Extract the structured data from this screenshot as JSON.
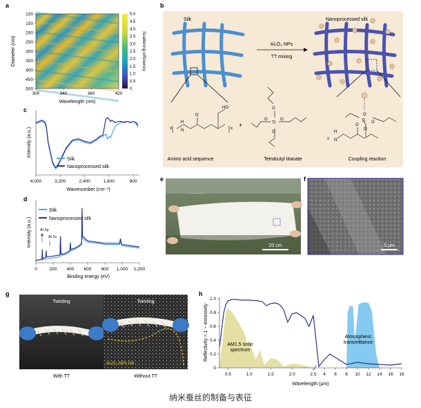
{
  "caption": "纳米蚕丝的制备与表征",
  "panel_letters": {
    "a": "a",
    "b": "b",
    "c": "c",
    "d": "d",
    "e": "e",
    "f": "f",
    "g": "g",
    "h": "h"
  },
  "colors": {
    "silk": "#4fa8e0",
    "nano": "#2b2f8f",
    "schematic_bg": "#f6e9d6",
    "solar": "#d8d27a",
    "atm": "#5cb8ea"
  },
  "chart_data": [
    {
      "type": "heatmap",
      "panel": "a",
      "xlabel": "Wavelength (nm)",
      "ylabel": "Diameter (nm)",
      "colorbar_label": "Scattering efficiency",
      "x_ticks": [
        "300",
        "340",
        "380",
        "420"
      ],
      "y_ticks": [
        "100",
        "150",
        "200",
        "250",
        "300",
        "350",
        "400",
        "450",
        "500"
      ],
      "colorbar_ticks": [
        "0",
        "0.5",
        "1.0",
        "1.5",
        "2.0",
        "2.5",
        "3.0",
        "3.5",
        "4.0",
        "4.5",
        "5.0"
      ],
      "xlim": [
        300,
        420
      ],
      "ylim": [
        100,
        500
      ],
      "zlim": [
        0,
        5
      ]
    },
    {
      "type": "line",
      "panel": "c",
      "xlabel": "Wavenumber (cm⁻¹)",
      "ylabel": "Intensity (a.u.)",
      "x_ticks": [
        "4,000",
        "3,200",
        "2,400",
        "1,600",
        "800"
      ],
      "xlim": [
        4000,
        600
      ],
      "series": [
        {
          "name": "Silk",
          "x": [
            4000,
            3800,
            3700,
            3650,
            3600,
            3450,
            3350,
            3300,
            3200,
            3100,
            3000,
            2900,
            2800,
            2600,
            2400,
            2200,
            2000,
            1900,
            1800,
            1700,
            1650,
            1600,
            1550,
            1500,
            1450,
            1400,
            1300,
            1200,
            1100,
            1000,
            900,
            800,
            700,
            650
          ],
          "y": [
            0.82,
            0.86,
            0.83,
            0.74,
            0.52,
            0.18,
            0.1,
            0.12,
            0.22,
            0.32,
            0.42,
            0.48,
            0.54,
            0.56,
            0.52,
            0.5,
            0.56,
            0.6,
            0.62,
            0.66,
            0.58,
            0.62,
            0.6,
            0.66,
            0.72,
            0.78,
            0.82,
            0.84,
            0.86,
            0.86,
            0.85,
            0.86,
            0.82,
            0.76
          ]
        },
        {
          "name": "Nanoprocessed silk",
          "x": [
            4000,
            3800,
            3700,
            3650,
            3600,
            3450,
            3350,
            3300,
            3200,
            3100,
            3000,
            2900,
            2800,
            2600,
            2400,
            2200,
            2000,
            1900,
            1800,
            1700,
            1650,
            1600,
            1550,
            1500,
            1450,
            1400,
            1300,
            1200,
            1100,
            1000,
            900,
            800,
            700,
            650
          ],
          "y": [
            0.84,
            0.88,
            0.85,
            0.76,
            0.54,
            0.2,
            0.12,
            0.14,
            0.24,
            0.34,
            0.44,
            0.5,
            0.56,
            0.58,
            0.54,
            0.52,
            0.58,
            0.62,
            0.64,
            0.9,
            0.92,
            0.9,
            0.86,
            0.88,
            0.86,
            0.84,
            0.86,
            0.86,
            0.84,
            0.86,
            0.84,
            0.86,
            0.84,
            0.8
          ]
        }
      ]
    },
    {
      "type": "line",
      "panel": "d",
      "xlabel": "Binding energy (eV)",
      "ylabel": "Intensity (a.u.)",
      "x_ticks": [
        "0",
        "200",
        "400",
        "600",
        "800",
        "1,000",
        "1,200"
      ],
      "xlim": [
        0,
        1200
      ],
      "annotations": [
        "Al 2p",
        "Al 2s"
      ],
      "series": [
        {
          "name": "Silk",
          "x": [
            0,
            50,
            80,
            100,
            150,
            200,
            250,
            280,
            285,
            290,
            300,
            350,
            395,
            400,
            405,
            450,
            500,
            530,
            535,
            540,
            600,
            700,
            800,
            900,
            970,
            980,
            990,
            1000,
            1100,
            1200
          ],
          "y": [
            0.04,
            0.05,
            0.05,
            0.06,
            0.07,
            0.08,
            0.09,
            0.1,
            0.42,
            0.14,
            0.12,
            0.14,
            0.18,
            0.34,
            0.2,
            0.22,
            0.26,
            0.3,
            0.8,
            0.4,
            0.34,
            0.32,
            0.3,
            0.3,
            0.3,
            0.36,
            0.3,
            0.28,
            0.26,
            0.24
          ]
        },
        {
          "name": "Nanoprocessed silk",
          "x": [
            0,
            50,
            70,
            74,
            78,
            100,
            115,
            119,
            123,
            150,
            200,
            250,
            280,
            285,
            290,
            300,
            350,
            395,
            400,
            405,
            450,
            500,
            530,
            535,
            540,
            600,
            700,
            800,
            900,
            970,
            980,
            990,
            1000,
            1100,
            1200
          ],
          "y": [
            0.04,
            0.05,
            0.06,
            0.22,
            0.07,
            0.08,
            0.09,
            0.2,
            0.1,
            0.1,
            0.11,
            0.12,
            0.13,
            0.44,
            0.16,
            0.14,
            0.16,
            0.2,
            0.32,
            0.22,
            0.24,
            0.28,
            0.32,
            0.9,
            0.44,
            0.36,
            0.34,
            0.32,
            0.32,
            0.32,
            0.4,
            0.32,
            0.3,
            0.28,
            0.26
          ]
        }
      ]
    },
    {
      "type": "line",
      "panel": "h",
      "xlabel": "Wavelength (μm)",
      "ylabel": "Reflectivity = 1 − emissivity",
      "x_ticks": [
        "0.5",
        "1.0",
        "1.5",
        "2.0",
        "2.5",
        "4",
        "6",
        "8",
        "10",
        "12",
        "14",
        "16",
        "18"
      ],
      "y_ticks": [
        "0",
        "0.2",
        "0.4",
        "0.6",
        "0.8",
        "1.0"
      ],
      "ylim": [
        0,
        1
      ],
      "x_axis": "broken (0.3–2.5 μm linear, 2.5–18 μm compressed)",
      "area_labels": [
        "AM1.5 solar\nspectrum",
        "Atmospheric\ntransmittance"
      ],
      "series": [
        {
          "name": "Nanoprocessed silk reflectivity",
          "x": [
            0.3,
            0.35,
            0.4,
            0.45,
            0.5,
            0.6,
            0.7,
            0.8,
            1.0,
            1.2,
            1.3,
            1.4,
            1.5,
            1.6,
            1.7,
            1.8,
            1.9,
            2.0,
            2.1,
            2.2,
            2.3,
            2.4,
            2.5,
            3,
            4,
            5,
            6,
            8,
            10,
            12,
            14,
            16,
            18
          ],
          "y": [
            0.3,
            0.55,
            0.8,
            0.92,
            0.97,
            0.99,
            0.99,
            0.98,
            0.98,
            0.97,
            0.96,
            0.9,
            0.93,
            0.94,
            0.92,
            0.85,
            0.66,
            0.78,
            0.8,
            0.76,
            0.72,
            0.6,
            0.76,
            0.02,
            0.12,
            0.2,
            0.15,
            0.05,
            0.08,
            0.06,
            0.05,
            0.04,
            0.06
          ]
        }
      ]
    }
  ],
  "panel_b": {
    "left_label": "Silk",
    "right_label": "Nanoprocessed silk",
    "arrow_top": "Al₂O₃ NPs",
    "arrow_bottom": "TT mixing",
    "caption_left": "Amino acid sequence",
    "caption_mid": "Tetrabutyl titanate",
    "caption_right": "Coupling reaction",
    "plus": "+",
    "chem_labels": [
      "H",
      "N",
      "O",
      "HO",
      "x",
      "x",
      "x",
      "O",
      "O",
      "Ti",
      "O",
      "O",
      "O",
      "Ti",
      "O",
      "H",
      "N",
      "O",
      "O"
    ]
  },
  "panel_c_legend": [
    "Silk",
    "Nanoprocessed silk"
  ],
  "panel_d_legend": [
    "Silk",
    "Nanoprocessed silk"
  ],
  "panel_e": {
    "scale": "20 cm"
  },
  "panel_f": {
    "scale": "5 μm"
  },
  "panel_g": {
    "left_title": "Twisting",
    "right_title": "Twisting",
    "note": "Al₂O₃ NPs fall",
    "left_caption": "With TT",
    "right_caption": "Without TT"
  }
}
